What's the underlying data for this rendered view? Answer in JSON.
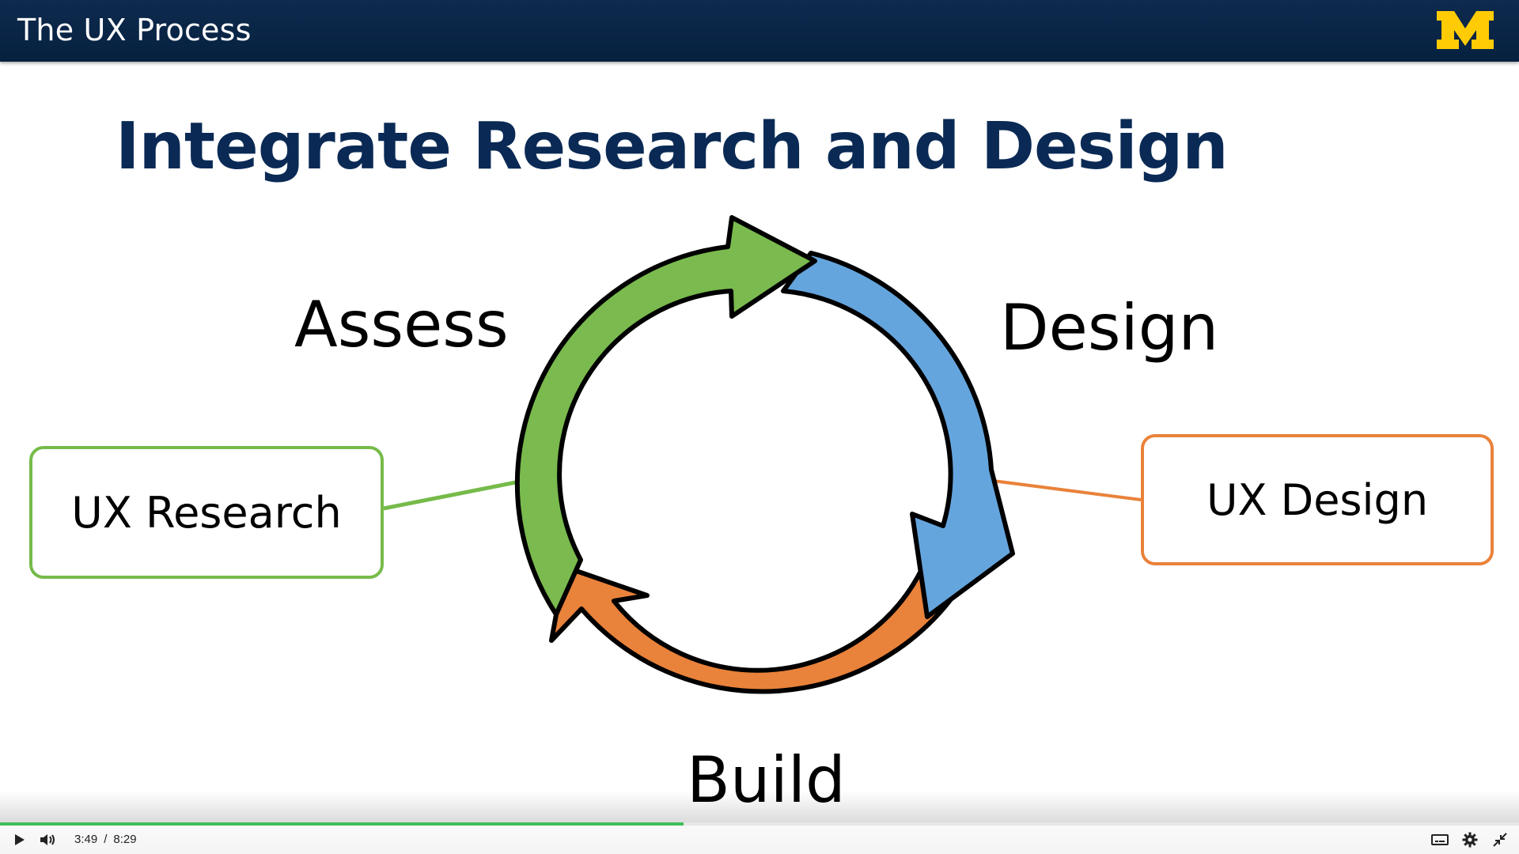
{
  "header": {
    "title": "The UX Process",
    "logo_letter": "M",
    "logo_color": "#ffcb05",
    "background": "#06213f"
  },
  "slide": {
    "title": "Integrate Research and Design",
    "title_color": "#0a2a55"
  },
  "cycle": {
    "phases": [
      {
        "label": "Assess",
        "color": "#7aba4e"
      },
      {
        "label": "Design",
        "color": "#65a5dd"
      },
      {
        "label": "Build",
        "color": "#e9823a"
      }
    ]
  },
  "boxes": {
    "research": {
      "label": "UX Research",
      "color": "#76bb4a"
    },
    "design": {
      "label": "UX Design",
      "color": "#e9823a"
    }
  },
  "player": {
    "current_time": "3:49",
    "separator": "/",
    "duration": "8:29",
    "progress_fraction": 0.45,
    "progress_color": "#3fbf5a",
    "icons": [
      "play-icon",
      "volume-icon",
      "captions-icon",
      "settings-gear-icon",
      "exit-fullscreen-icon"
    ]
  }
}
